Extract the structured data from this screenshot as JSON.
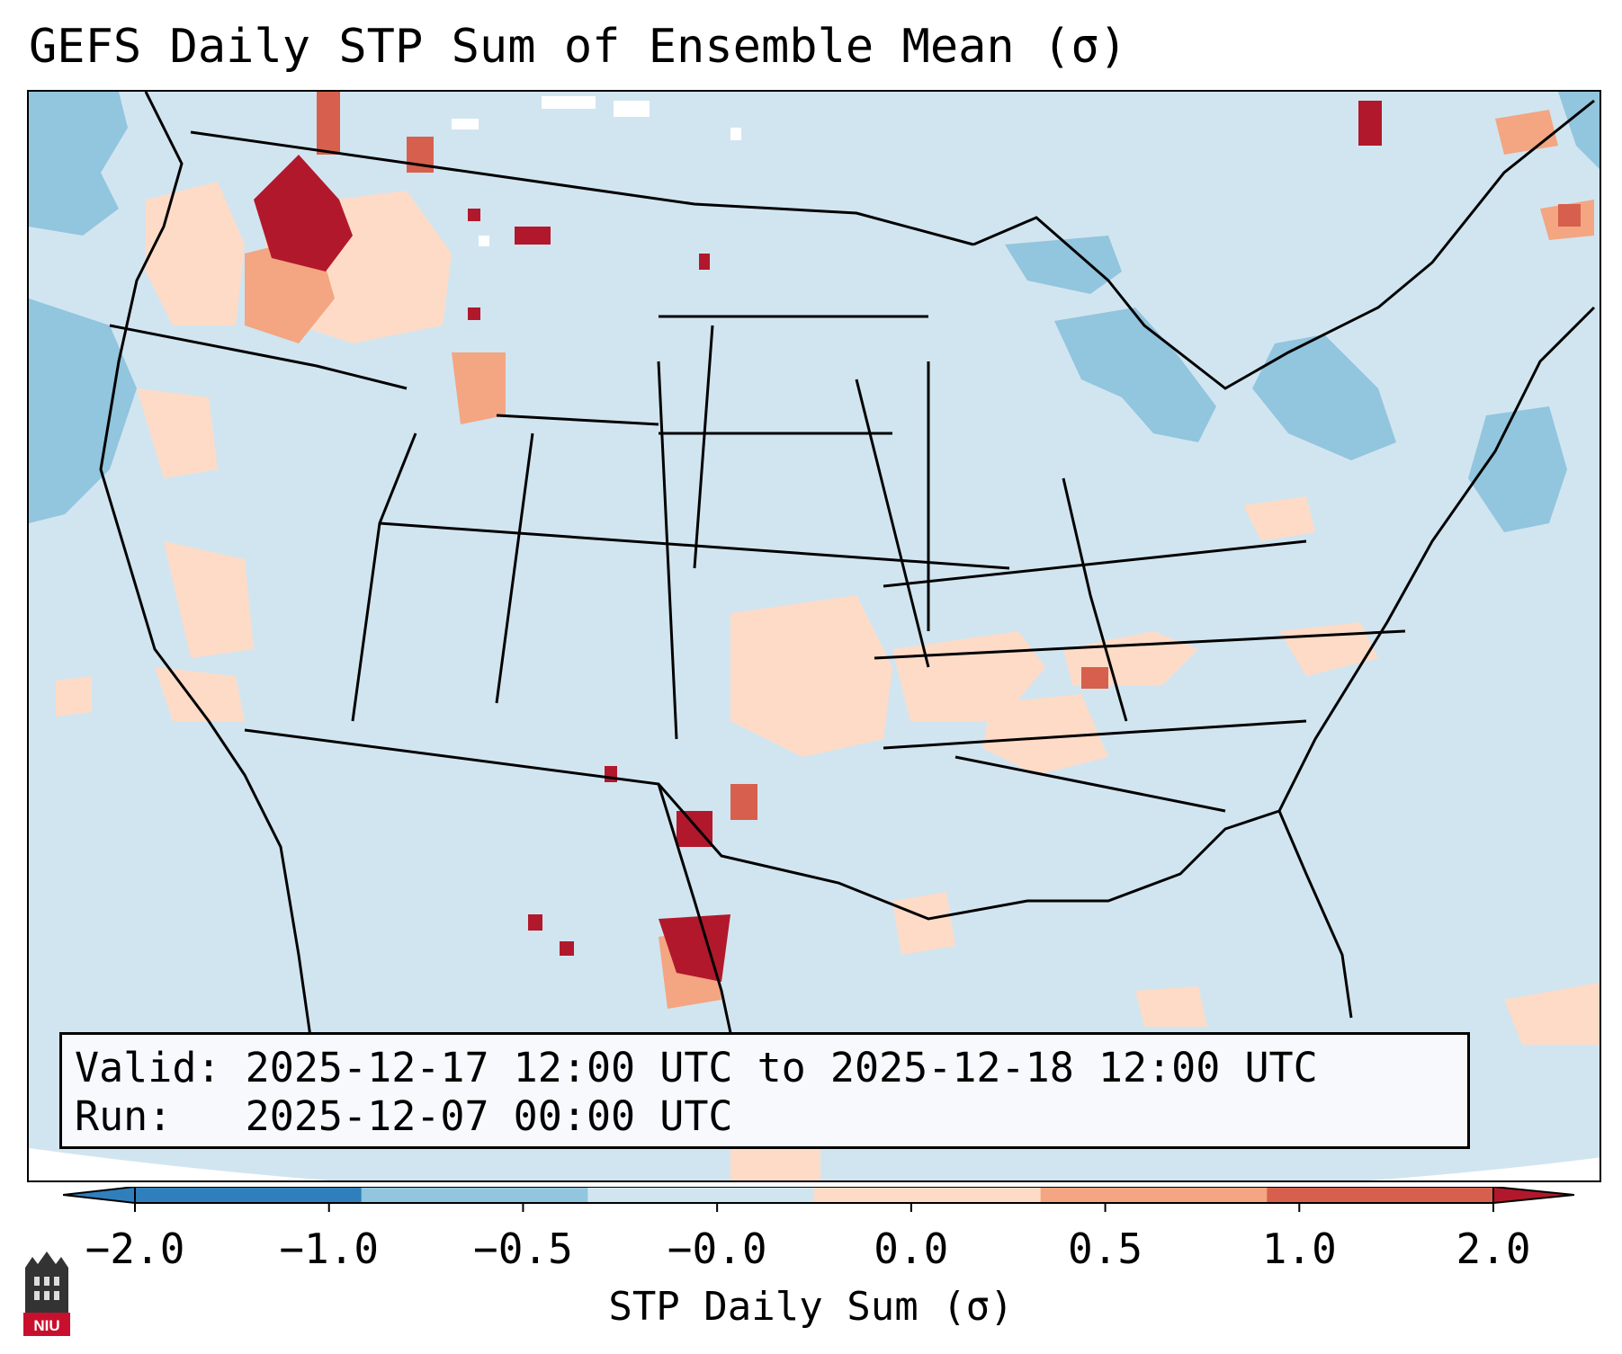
{
  "title": "GEFS Daily STP Sum of Ensemble Mean (σ)",
  "info": {
    "valid_label": "Valid:",
    "valid_range": "2025-12-17 12:00 UTC to 2025-12-18 12:00 UTC",
    "run_label": "Run:",
    "run_time": "2025-12-07 00:00 UTC"
  },
  "colorbar": {
    "label": "STP Daily Sum (σ)",
    "ticks": [
      "−2.0",
      "−1.0",
      "−0.5",
      "−0.0",
      "0.0",
      "0.5",
      "1.0",
      "2.0"
    ],
    "colors": [
      "#2f7fbd",
      "#92c5de",
      "#d1e5f0",
      "#f7f7f7",
      "#fddbc7",
      "#f4a582",
      "#d6604d",
      "#b2182b"
    ],
    "extend": "both"
  },
  "logo": {
    "text": "NIU",
    "icon": "niu-logo-icon"
  },
  "legend_colors": {
    "background": "#d1e5f0",
    "light_blue": "#92c5de",
    "white": "#ffffff",
    "light_red": "#fddbc7",
    "salmon": "#f4a582",
    "red": "#d6604d",
    "dark_red": "#b2182b"
  }
}
